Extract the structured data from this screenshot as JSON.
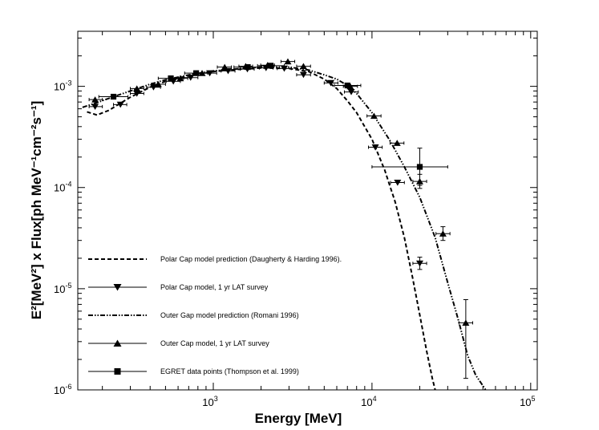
{
  "chart_data": {
    "type": "scatter",
    "title": "",
    "xlabel": "Energy [MeV]",
    "ylabel": "E²[MeV²] x Flux[ph MeV⁻¹cm⁻²s⁻¹]",
    "x_scale": "log",
    "y_scale": "log",
    "xlim": [
      140,
      110000
    ],
    "ylim": [
      1e-06,
      0.0035
    ],
    "x_ticks": [
      {
        "value": 1000,
        "base": "10",
        "exp": "3"
      },
      {
        "value": 10000,
        "base": "10",
        "exp": "4"
      },
      {
        "value": 100000,
        "base": "10",
        "exp": "5"
      }
    ],
    "y_ticks": [
      {
        "value": 0.001,
        "base": "10",
        "exp": "-3"
      },
      {
        "value": 0.0001,
        "base": "10",
        "exp": "-4"
      },
      {
        "value": 1e-05,
        "base": "10",
        "exp": "-5"
      },
      {
        "value": 1e-06,
        "base": "10",
        "exp": "-6"
      }
    ],
    "legend_position": "lower-left",
    "series": [
      {
        "name": "Polar Cap model prediction (Daugherty & Harding 1996).",
        "kind": "line",
        "dash": "dashed",
        "x": [
          160,
          185,
          220,
          300,
          400,
          500,
          700,
          1000,
          1500,
          2000,
          3000,
          4000,
          5000,
          6000,
          7000,
          8000,
          10000,
          12000,
          14000,
          16000,
          18000,
          20000,
          22000,
          24000,
          25000
        ],
        "y": [
          0.00056,
          0.00052,
          0.00058,
          0.00078,
          0.00098,
          0.00112,
          0.00128,
          0.0014,
          0.00148,
          0.00152,
          0.0015,
          0.0014,
          0.00118,
          0.00095,
          0.00072,
          0.00055,
          0.0003,
          0.00015,
          7.2e-05,
          3.2e-05,
          1.3e-05,
          5.5e-06,
          2.5e-06,
          1.3e-06,
          1e-06
        ]
      },
      {
        "name": "Polar Cap model, 1 yr LAT survey",
        "kind": "points",
        "marker": "triangle-down",
        "points": [
          {
            "x": 180,
            "y": 0.00063,
            "xlo": 165,
            "xhi": 200
          },
          {
            "x": 260,
            "y": 0.00066,
            "xlo": 235,
            "xhi": 285
          },
          {
            "x": 330,
            "y": 0.00085,
            "xlo": 300,
            "xhi": 365
          },
          {
            "x": 420,
            "y": 0.00098,
            "xlo": 380,
            "xhi": 465
          },
          {
            "x": 560,
            "y": 0.00112,
            "xlo": 505,
            "xhi": 620
          },
          {
            "x": 720,
            "y": 0.00122,
            "xlo": 650,
            "xhi": 800
          },
          {
            "x": 950,
            "y": 0.00135,
            "xlo": 860,
            "xhi": 1050
          },
          {
            "x": 1240,
            "y": 0.00142,
            "xlo": 1120,
            "xhi": 1370
          },
          {
            "x": 1640,
            "y": 0.00148,
            "xlo": 1480,
            "xhi": 1810
          },
          {
            "x": 2150,
            "y": 0.00152,
            "xlo": 1950,
            "xhi": 2380
          },
          {
            "x": 2800,
            "y": 0.0015,
            "xlo": 2530,
            "xhi": 3100
          },
          {
            "x": 3700,
            "y": 0.0013,
            "xlo": 3350,
            "xhi": 4100
          },
          {
            "x": 5500,
            "y": 0.00108,
            "xlo": 5000,
            "xhi": 6100
          },
          {
            "x": 7400,
            "y": 0.00088,
            "xlo": 6700,
            "xhi": 8200
          },
          {
            "x": 10500,
            "y": 0.00025,
            "xlo": 9500,
            "xhi": 11600
          },
          {
            "x": 14500,
            "y": 0.000112,
            "xlo": 13100,
            "xhi": 16000
          },
          {
            "x": 20000,
            "y": 1.78e-05,
            "xlo": 18100,
            "xhi": 22100,
            "ylo": 1.55e-05,
            "yhi": 2.05e-05
          }
        ]
      },
      {
        "name": "Outer Gap model prediction (Romani 1996)",
        "kind": "line",
        "dash": "dash-dot-dot",
        "x": [
          150,
          180,
          230,
          300,
          400,
          500,
          700,
          1000,
          1500,
          2000,
          3000,
          4000,
          5000,
          6000,
          7000,
          8000,
          10000,
          13000,
          16000,
          20000,
          25000,
          30000,
          35000,
          40000,
          45000,
          50000,
          52000
        ],
        "y": [
          0.00062,
          0.00068,
          0.00078,
          0.0009,
          0.00105,
          0.00116,
          0.0013,
          0.00142,
          0.0015,
          0.00155,
          0.00155,
          0.00145,
          0.0013,
          0.00118,
          0.00102,
          0.00085,
          0.00055,
          0.00029,
          0.00016,
          8e-05,
          3.2e-05,
          1.15e-05,
          4.9e-06,
          2.2e-06,
          1.4e-06,
          1.1e-06,
          1e-06
        ]
      },
      {
        "name": "Outer Cap model, 1 yr LAT survey",
        "kind": "points",
        "marker": "triangle-up",
        "points": [
          {
            "x": 180,
            "y": 0.00074,
            "xlo": 165,
            "xhi": 200
          },
          {
            "x": 330,
            "y": 0.00095,
            "xlo": 300,
            "xhi": 365
          },
          {
            "x": 450,
            "y": 0.00105,
            "xlo": 410,
            "xhi": 500
          },
          {
            "x": 620,
            "y": 0.0012,
            "xlo": 560,
            "xhi": 690
          },
          {
            "x": 850,
            "y": 0.00135,
            "xlo": 770,
            "xhi": 940
          },
          {
            "x": 1180,
            "y": 0.00155,
            "xlo": 1060,
            "xhi": 1300
          },
          {
            "x": 1600,
            "y": 0.00158,
            "xlo": 1450,
            "xhi": 1770
          },
          {
            "x": 2200,
            "y": 0.00162,
            "xlo": 1990,
            "xhi": 2430
          },
          {
            "x": 2950,
            "y": 0.00176,
            "xlo": 2670,
            "xhi": 3260
          },
          {
            "x": 3700,
            "y": 0.00158,
            "xlo": 3350,
            "xhi": 4100
          },
          {
            "x": 7300,
            "y": 0.001,
            "xlo": 6600,
            "xhi": 8100
          },
          {
            "x": 10300,
            "y": 0.00051,
            "xlo": 9300,
            "xhi": 11400
          },
          {
            "x": 14400,
            "y": 0.000275,
            "xlo": 13000,
            "xhi": 15900
          },
          {
            "x": 20000,
            "y": 0.000115,
            "xlo": 18100,
            "xhi": 22100,
            "ylo": 9.8e-05,
            "yhi": 0.000135
          },
          {
            "x": 28000,
            "y": 3.5e-05,
            "xlo": 25300,
            "xhi": 31000,
            "ylo": 3e-05,
            "yhi": 4.1e-05
          },
          {
            "x": 39000,
            "y": 4.6e-06,
            "xlo": 35300,
            "xhi": 43100,
            "ylo": 1.3e-06,
            "yhi": 7.8e-06
          }
        ]
      },
      {
        "name": "EGRET data points (Thompson et al. 1999)",
        "kind": "points",
        "marker": "square",
        "points": [
          {
            "x": 235,
            "y": 0.00079,
            "xlo": 190,
            "xhi": 290
          },
          {
            "x": 540,
            "y": 0.0012,
            "xlo": 450,
            "xhi": 650
          },
          {
            "x": 780,
            "y": 0.00135,
            "xlo": 660,
            "xhi": 920
          },
          {
            "x": 1650,
            "y": 0.00155,
            "xlo": 1350,
            "xhi": 2000
          },
          {
            "x": 2300,
            "y": 0.0016,
            "xlo": 1900,
            "xhi": 2800
          },
          {
            "x": 7000,
            "y": 0.00102,
            "xlo": 5800,
            "xhi": 8500
          },
          {
            "x": 20000,
            "y": 0.00016,
            "xlo": 10000,
            "xhi": 30000,
            "ylo": 0.000105,
            "yhi": 0.000245
          }
        ]
      }
    ]
  }
}
